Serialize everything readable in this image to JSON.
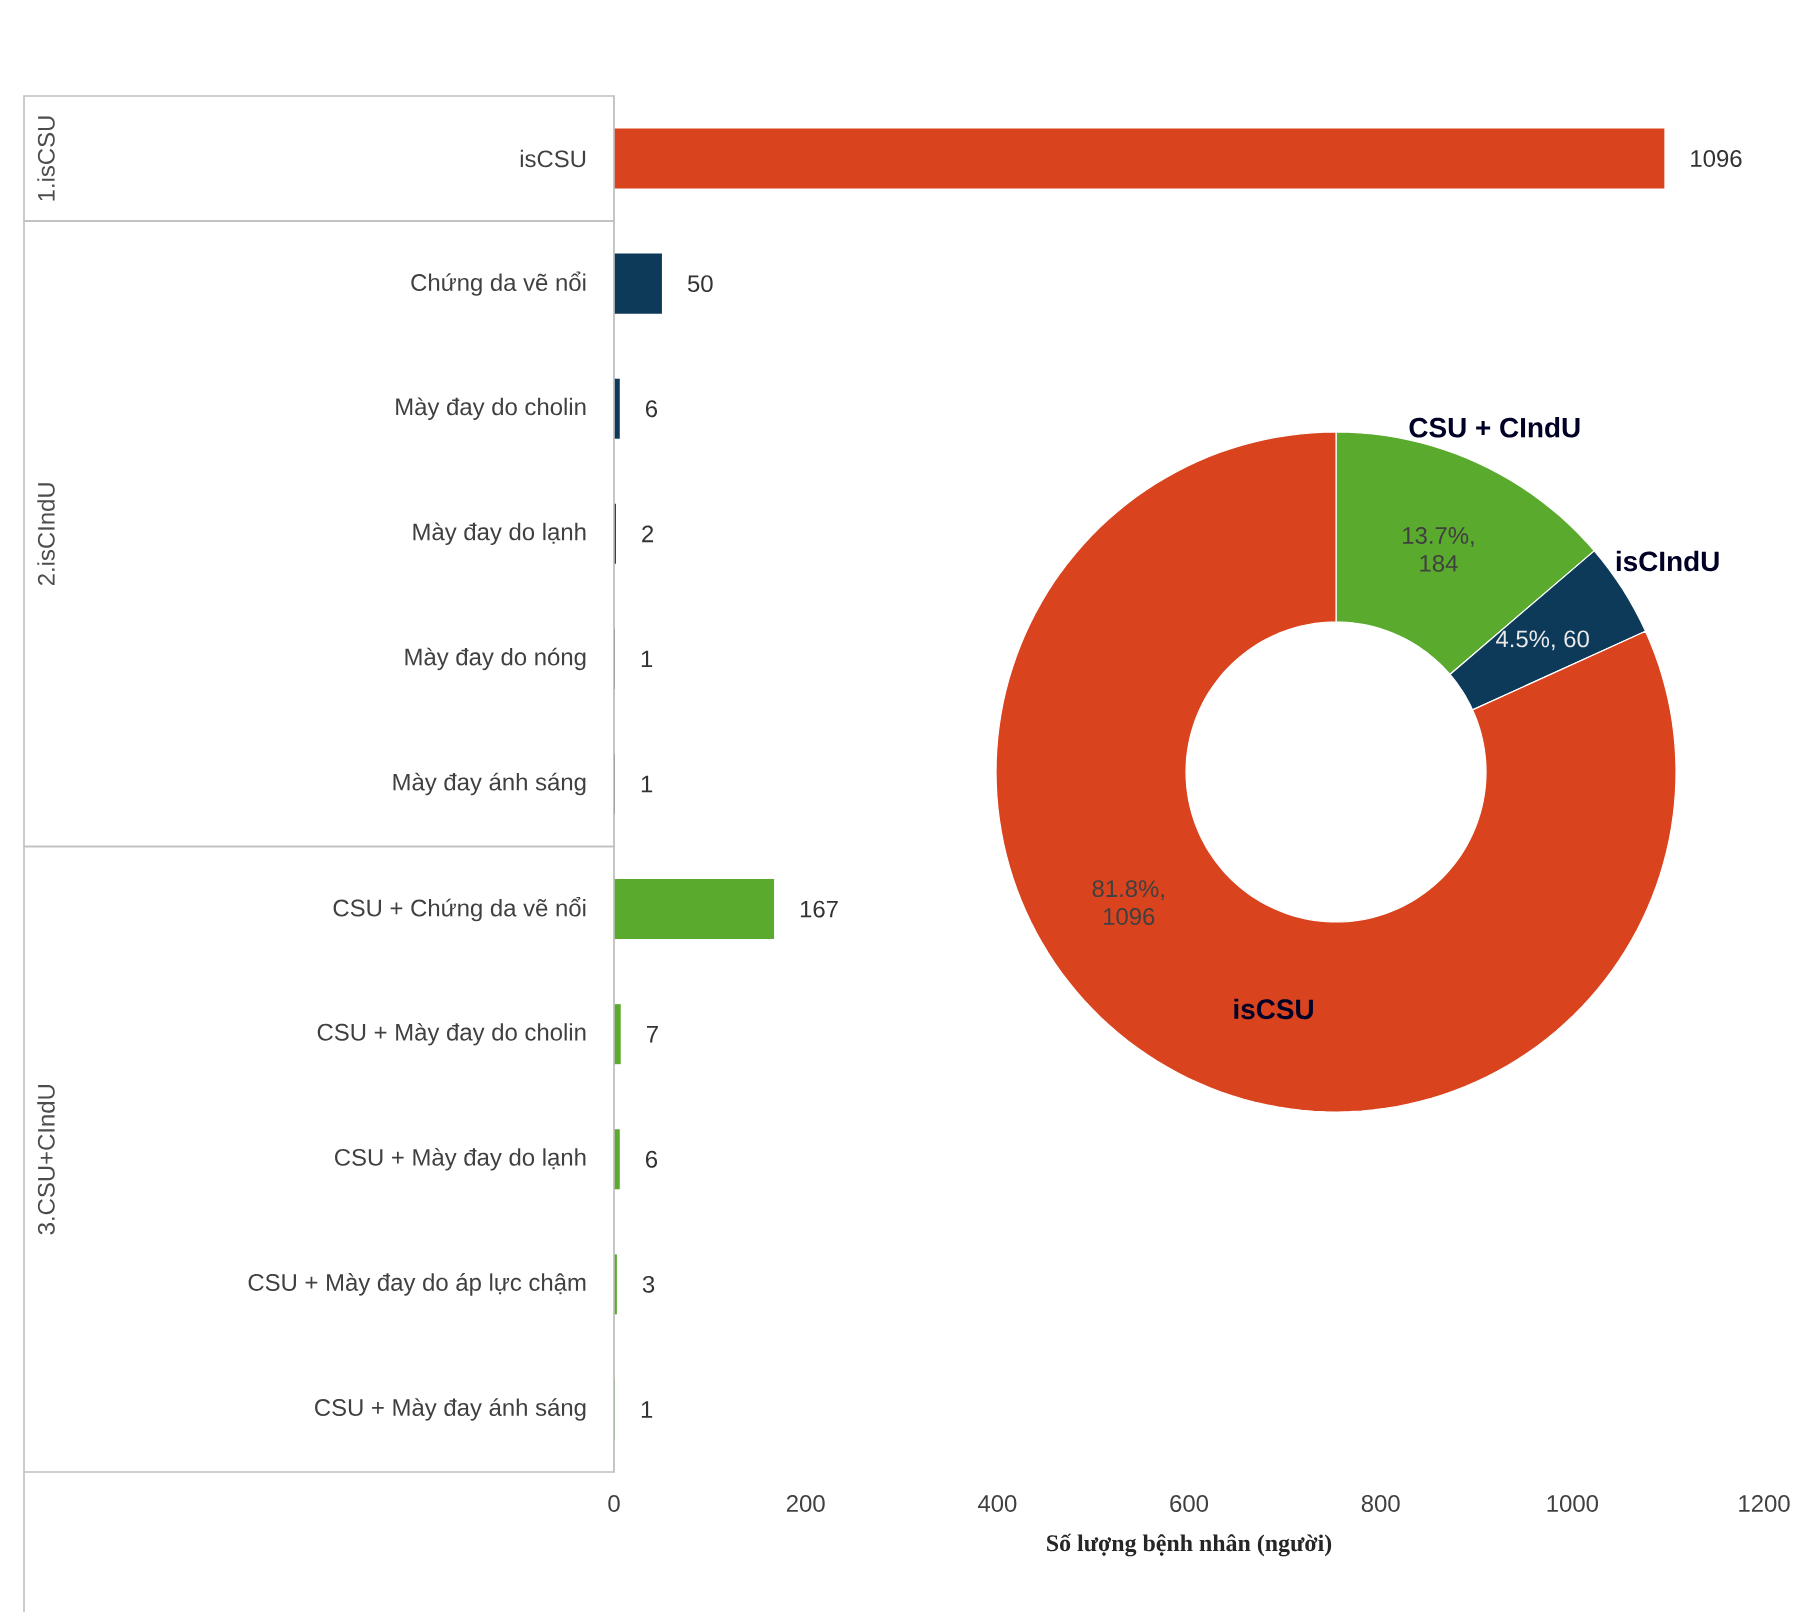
{
  "chart_data": [
    {
      "type": "bar",
      "orientation": "horizontal",
      "categories": [
        "isCSU",
        "Chứng da vẽ nổi",
        "Mày đay do cholin",
        "Mày đay do lạnh",
        "Mày đay do nóng",
        "Mày đay ánh sáng",
        "CSU + Chứng da vẽ nổi",
        "CSU + Mày đay do cholin",
        "CSU + Mày đay do lạnh",
        "CSU + Mày đay do áp lực chậm",
        "CSU + Mày đay ánh sáng"
      ],
      "values": [
        1096,
        50,
        6,
        2,
        1,
        1,
        167,
        7,
        6,
        3,
        1
      ],
      "colors": [
        "#d9431e",
        "#0e3a5a",
        "#0e3a5a",
        "#0e3a5a",
        "#0e3a5a",
        "#0e3a5a",
        "#5aaa2e",
        "#5aaa2e",
        "#5aaa2e",
        "#5aaa2e",
        "#5aaa2e"
      ],
      "xlim": [
        0,
        1200
      ],
      "xticks": [
        0,
        200,
        400,
        600,
        800,
        1000,
        1200
      ],
      "xlabel": "Số lượng bệnh nhân (người)",
      "data_labels": true,
      "annotations": [
        "1.isCSU",
        "2.isCIndU",
        "3.CSU+CIndU"
      ]
    },
    {
      "type": "donut",
      "categories": [
        "CSU + CIndU",
        "isCIndU",
        "isCSU"
      ],
      "values": [
        184,
        60,
        1096
      ],
      "colors": [
        "#5aaa2e",
        "#0e3a5a",
        "#d9431e"
      ],
      "value_labels": [
        "13.7%, 184",
        "4.5%, 60",
        "81.8%, 1096"
      ]
    }
  ]
}
